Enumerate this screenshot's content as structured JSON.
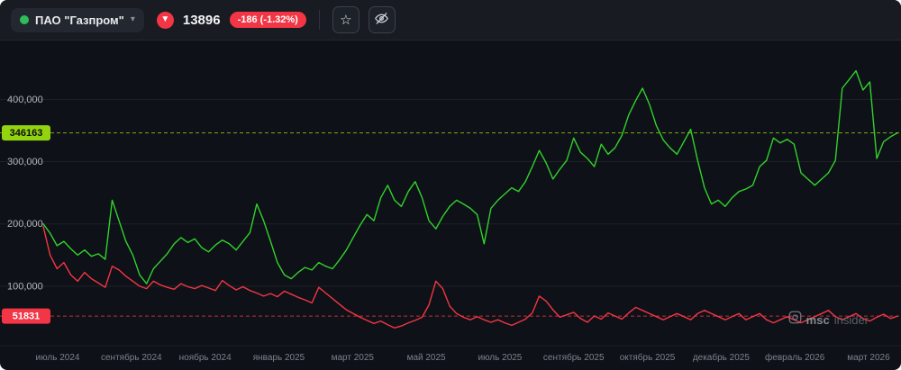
{
  "header": {
    "instrument_name": "ПАО \"Газпром\"",
    "chevron": "▾",
    "down_arrow": "▼",
    "price": "13896",
    "change": "-186 (-1.32%)",
    "star": "☆",
    "colors": {
      "up_dot": "#2ebd59",
      "down_red": "#f23645"
    }
  },
  "watermark": {
    "bold": "msc",
    "light": "insider"
  },
  "chart_data": {
    "type": "line",
    "title": "",
    "xlabel": "",
    "ylabel": "",
    "grid": "horizontal",
    "legend": "none",
    "ylim": [
      0,
      470000
    ],
    "yticks": [
      100000,
      200000,
      300000,
      400000
    ],
    "ytick_labels": [
      "100,000",
      "200,000",
      "300,000",
      "400,000"
    ],
    "x_labels": [
      "июль 2024",
      "сентябрь 2024",
      "ноябрь 2024",
      "январь 2025",
      "март 2025",
      "май 2025",
      "июль 2025",
      "сентябрь 2025",
      "октябрь 2025",
      "декабрь 2025",
      "февраль 2026",
      "март 2026"
    ],
    "series": [
      {
        "name": "green-line",
        "color": "#31d12c",
        "values": [
          200000,
          185000,
          165000,
          172000,
          160000,
          150000,
          158000,
          148000,
          152000,
          143000,
          238000,
          205000,
          172000,
          150000,
          118000,
          104000,
          128000,
          140000,
          152000,
          168000,
          178000,
          170000,
          176000,
          162000,
          155000,
          166000,
          174000,
          168000,
          158000,
          172000,
          186000,
          232000,
          205000,
          172000,
          138000,
          118000,
          112000,
          122000,
          130000,
          126000,
          138000,
          132000,
          128000,
          142000,
          158000,
          178000,
          198000,
          215000,
          205000,
          242000,
          262000,
          238000,
          228000,
          252000,
          268000,
          242000,
          205000,
          192000,
          212000,
          228000,
          238000,
          232000,
          225000,
          215000,
          168000,
          225000,
          238000,
          248000,
          258000,
          252000,
          268000,
          292000,
          318000,
          298000,
          272000,
          288000,
          302000,
          338000,
          315000,
          305000,
          292000,
          328000,
          312000,
          322000,
          342000,
          375000,
          398000,
          418000,
          392000,
          358000,
          335000,
          322000,
          312000,
          332000,
          352000,
          302000,
          258000,
          232000,
          238000,
          228000,
          242000,
          252000,
          256000,
          262000,
          292000,
          302000,
          338000,
          330000,
          336000,
          328000,
          282000,
          272000,
          262000,
          272000,
          282000,
          302000,
          418000,
          432000,
          446000,
          415000,
          428000,
          305000,
          332000,
          340000,
          346163
        ]
      },
      {
        "name": "red-line",
        "color": "#f23645",
        "values": [
          196000,
          150000,
          128000,
          138000,
          118000,
          108000,
          122000,
          112000,
          105000,
          98000,
          132000,
          126000,
          116000,
          108000,
          100000,
          96000,
          108000,
          102000,
          98000,
          95000,
          104000,
          99000,
          96000,
          101000,
          97000,
          93000,
          109000,
          101000,
          94000,
          99000,
          93000,
          89000,
          84000,
          88000,
          83000,
          92000,
          87000,
          82000,
          78000,
          73000,
          98000,
          89000,
          80000,
          71000,
          62000,
          56000,
          50000,
          45000,
          40000,
          44000,
          38000,
          33000,
          36000,
          41000,
          45000,
          50000,
          70000,
          108000,
          96000,
          68000,
          56000,
          50000,
          46000,
          51000,
          46000,
          42000,
          46000,
          41000,
          37000,
          42000,
          47000,
          57000,
          84000,
          76000,
          62000,
          50000,
          54000,
          58000,
          48000,
          42000,
          52000,
          47000,
          57000,
          52000,
          47000,
          57000,
          66000,
          61000,
          56000,
          51000,
          46000,
          51000,
          56000,
          51000,
          46000,
          56000,
          61000,
          56000,
          51000,
          46000,
          51000,
          56000,
          46000,
          51000,
          56000,
          46000,
          41000,
          46000,
          51000,
          46000,
          41000,
          46000,
          51000,
          56000,
          61000,
          51000,
          46000,
          51000,
          56000,
          48000,
          44000,
          50000,
          55000,
          48000,
          51831
        ]
      }
    ],
    "last_lines": [
      {
        "label": "346163",
        "value": 346163,
        "color": "#93d411",
        "text_color": "#0b0e09"
      },
      {
        "label": "51831",
        "value": 51831,
        "color": "#f23645",
        "text_color": "#ffffff"
      }
    ]
  }
}
